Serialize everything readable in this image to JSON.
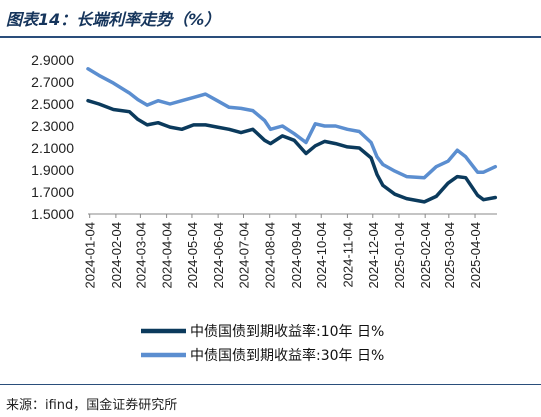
{
  "header": {
    "title": "图表14：长端利率走势（%）"
  },
  "footer": {
    "source": "来源：ifind，国金证券研究所"
  },
  "chart_data": {
    "type": "line",
    "title": "图表14：长端利率走势（%）",
    "xlabel": "",
    "ylabel": "",
    "ylim": [
      1.5,
      2.9
    ],
    "yticks": [
      "2.9000",
      "2.7000",
      "2.5000",
      "2.3000",
      "2.1000",
      "1.9000",
      "1.7000",
      "1.5000"
    ],
    "x_tick_labels": [
      "2024-01-04",
      "2024-02-04",
      "2024-03-04",
      "2024-04-04",
      "2024-05-04",
      "2024-06-04",
      "2024-07-04",
      "2024-08-04",
      "2024-09-04",
      "2024-10-04",
      "2024-11-04",
      "2024-12-04",
      "2025-01-04",
      "2025-02-04",
      "2025-03-04",
      "2025-04-04"
    ],
    "legend_position": "bottom",
    "grid": false,
    "x": [
      "2024-01-02",
      "2024-01-15",
      "2024-02-01",
      "2024-02-20",
      "2024-03-01",
      "2024-03-12",
      "2024-03-25",
      "2024-04-08",
      "2024-04-22",
      "2024-05-06",
      "2024-05-20",
      "2024-06-03",
      "2024-06-17",
      "2024-07-01",
      "2024-07-15",
      "2024-07-29",
      "2024-08-05",
      "2024-08-19",
      "2024-09-02",
      "2024-09-16",
      "2024-09-27",
      "2024-10-08",
      "2024-10-21",
      "2024-11-04",
      "2024-11-18",
      "2024-12-02",
      "2024-12-09",
      "2024-12-16",
      "2024-12-30",
      "2025-01-13",
      "2025-02-03",
      "2025-02-17",
      "2025-03-03",
      "2025-03-14",
      "2025-03-24",
      "2025-04-07",
      "2025-04-14",
      "2025-04-28"
    ],
    "series": [
      {
        "name": "中债国债到期收益率:10年 日%",
        "color": "#0b3a5c",
        "values": [
          2.53,
          2.5,
          2.45,
          2.43,
          2.36,
          2.31,
          2.33,
          2.29,
          2.27,
          2.31,
          2.31,
          2.29,
          2.27,
          2.24,
          2.27,
          2.17,
          2.14,
          2.21,
          2.17,
          2.05,
          2.12,
          2.16,
          2.14,
          2.11,
          2.1,
          2.01,
          1.86,
          1.76,
          1.68,
          1.64,
          1.61,
          1.66,
          1.78,
          1.84,
          1.83,
          1.67,
          1.63,
          1.65
        ]
      },
      {
        "name": "中债国债到期收益率:30年 日%",
        "color": "#5b8ed0",
        "values": [
          2.82,
          2.76,
          2.69,
          2.6,
          2.54,
          2.49,
          2.53,
          2.5,
          2.53,
          2.56,
          2.59,
          2.53,
          2.47,
          2.46,
          2.44,
          2.35,
          2.27,
          2.3,
          2.23,
          2.15,
          2.32,
          2.3,
          2.3,
          2.27,
          2.25,
          2.15,
          2.02,
          1.95,
          1.89,
          1.84,
          1.83,
          1.93,
          1.98,
          2.08,
          2.02,
          1.88,
          1.88,
          1.93
        ]
      }
    ]
  }
}
